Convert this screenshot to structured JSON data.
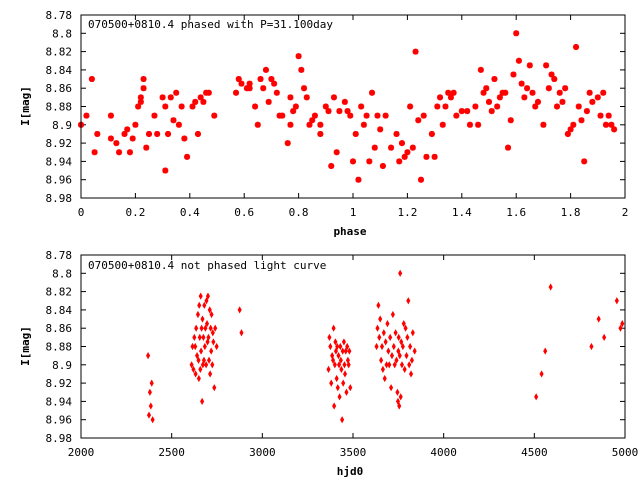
{
  "chart_data": [
    {
      "type": "scatter",
      "title": "070500+0810.4 phased with P=31.100day",
      "xlabel": "phase",
      "ylabel": "I[mag]",
      "xlim": [
        0,
        2
      ],
      "ylim": [
        8.78,
        8.98
      ],
      "y_inverted": true,
      "grid": false,
      "marker": "star",
      "color": "#ff0000",
      "x_ticks": [
        0,
        0.2,
        0.4,
        0.6,
        0.8,
        1,
        1.2,
        1.4,
        1.6,
        1.8,
        2
      ],
      "y_ticks": [
        8.78,
        8.8,
        8.82,
        8.84,
        8.86,
        8.88,
        8.9,
        8.92,
        8.94,
        8.96,
        8.98
      ],
      "x_tick_labels": [
        "0",
        "0.2",
        "0.4",
        "0.6",
        "0.8",
        "1",
        "1.2",
        "1.4",
        "1.6",
        "1.8",
        "2"
      ],
      "y_tick_labels": [
        "8.78",
        "8.8",
        "8.82",
        "8.84",
        "8.86",
        "8.88",
        "8.9",
        "8.92",
        "8.94",
        "8.96",
        "8.98"
      ],
      "points": [
        [
          0.0,
          8.9
        ],
        [
          0.02,
          8.89
        ],
        [
          0.04,
          8.85
        ],
        [
          0.05,
          8.93
        ],
        [
          0.06,
          8.91
        ],
        [
          0.11,
          8.915
        ],
        [
          0.11,
          8.89
        ],
        [
          0.13,
          8.92
        ],
        [
          0.14,
          8.93
        ],
        [
          0.16,
          8.91
        ],
        [
          0.17,
          8.905
        ],
        [
          0.18,
          8.93
        ],
        [
          0.19,
          8.915
        ],
        [
          0.2,
          8.9
        ],
        [
          0.21,
          8.88
        ],
        [
          0.22,
          8.875
        ],
        [
          0.22,
          8.87
        ],
        [
          0.23,
          8.85
        ],
        [
          0.23,
          8.86
        ],
        [
          0.24,
          8.925
        ],
        [
          0.25,
          8.91
        ],
        [
          0.27,
          8.89
        ],
        [
          0.28,
          8.91
        ],
        [
          0.3,
          8.87
        ],
        [
          0.31,
          8.95
        ],
        [
          0.31,
          8.88
        ],
        [
          0.32,
          8.91
        ],
        [
          0.33,
          8.87
        ],
        [
          0.34,
          8.895
        ],
        [
          0.35,
          8.865
        ],
        [
          0.36,
          8.9
        ],
        [
          0.37,
          8.88
        ],
        [
          0.38,
          8.915
        ],
        [
          0.39,
          8.935
        ],
        [
          0.41,
          8.88
        ],
        [
          0.42,
          8.875
        ],
        [
          0.43,
          8.91
        ],
        [
          0.44,
          8.87
        ],
        [
          0.45,
          8.875
        ],
        [
          0.46,
          8.865
        ],
        [
          0.47,
          8.865
        ],
        [
          0.49,
          8.89
        ],
        [
          0.57,
          8.865
        ],
        [
          0.58,
          8.85
        ],
        [
          0.59,
          8.855
        ],
        [
          0.61,
          8.86
        ],
        [
          0.62,
          8.855
        ],
        [
          0.62,
          8.86
        ],
        [
          0.64,
          8.88
        ],
        [
          0.65,
          8.9
        ],
        [
          0.66,
          8.85
        ],
        [
          0.67,
          8.86
        ],
        [
          0.68,
          8.84
        ],
        [
          0.69,
          8.875
        ],
        [
          0.7,
          8.85
        ],
        [
          0.71,
          8.855
        ],
        [
          0.72,
          8.865
        ],
        [
          0.73,
          8.89
        ],
        [
          0.74,
          8.89
        ],
        [
          0.76,
          8.92
        ],
        [
          0.77,
          8.87
        ],
        [
          0.77,
          8.9
        ],
        [
          0.78,
          8.885
        ],
        [
          0.79,
          8.88
        ],
        [
          0.8,
          8.825
        ],
        [
          0.81,
          8.84
        ],
        [
          0.82,
          8.86
        ],
        [
          0.83,
          8.87
        ],
        [
          0.84,
          8.9
        ],
        [
          0.85,
          8.895
        ],
        [
          0.86,
          8.89
        ],
        [
          0.88,
          8.91
        ],
        [
          0.88,
          8.9
        ],
        [
          0.9,
          8.88
        ],
        [
          0.91,
          8.885
        ],
        [
          0.92,
          8.945
        ],
        [
          0.93,
          8.87
        ],
        [
          0.94,
          8.93
        ],
        [
          0.95,
          8.885
        ],
        [
          0.97,
          8.875
        ],
        [
          0.98,
          8.885
        ],
        [
          0.99,
          8.89
        ],
        [
          1.0,
          8.94
        ],
        [
          1.01,
          8.91
        ],
        [
          1.02,
          8.96
        ],
        [
          1.03,
          8.88
        ],
        [
          1.04,
          8.9
        ],
        [
          1.05,
          8.89
        ],
        [
          1.06,
          8.94
        ],
        [
          1.07,
          8.865
        ],
        [
          1.08,
          8.925
        ],
        [
          1.09,
          8.89
        ],
        [
          1.1,
          8.905
        ],
        [
          1.11,
          8.945
        ],
        [
          1.12,
          8.89
        ],
        [
          1.14,
          8.925
        ],
        [
          1.16,
          8.91
        ],
        [
          1.17,
          8.94
        ],
        [
          1.18,
          8.92
        ],
        [
          1.19,
          8.935
        ],
        [
          1.2,
          8.93
        ],
        [
          1.21,
          8.88
        ],
        [
          1.22,
          8.925
        ],
        [
          1.23,
          8.82
        ],
        [
          1.24,
          8.895
        ],
        [
          1.25,
          8.96
        ],
        [
          1.26,
          8.89
        ],
        [
          1.27,
          8.935
        ],
        [
          1.29,
          8.91
        ],
        [
          1.3,
          8.935
        ],
        [
          1.31,
          8.88
        ],
        [
          1.32,
          8.87
        ],
        [
          1.33,
          8.9
        ],
        [
          1.34,
          8.88
        ],
        [
          1.35,
          8.865
        ],
        [
          1.36,
          8.87
        ],
        [
          1.37,
          8.865
        ],
        [
          1.38,
          8.89
        ],
        [
          1.4,
          8.885
        ],
        [
          1.42,
          8.885
        ],
        [
          1.43,
          8.9
        ],
        [
          1.45,
          8.88
        ],
        [
          1.46,
          8.9
        ],
        [
          1.47,
          8.84
        ],
        [
          1.48,
          8.865
        ],
        [
          1.49,
          8.86
        ],
        [
          1.5,
          8.875
        ],
        [
          1.51,
          8.885
        ],
        [
          1.52,
          8.85
        ],
        [
          1.53,
          8.88
        ],
        [
          1.54,
          8.87
        ],
        [
          1.55,
          8.865
        ],
        [
          1.56,
          8.865
        ],
        [
          1.57,
          8.925
        ],
        [
          1.58,
          8.895
        ],
        [
          1.59,
          8.845
        ],
        [
          1.6,
          8.8
        ],
        [
          1.61,
          8.83
        ],
        [
          1.62,
          8.855
        ],
        [
          1.63,
          8.87
        ],
        [
          1.64,
          8.86
        ],
        [
          1.65,
          8.835
        ],
        [
          1.66,
          8.865
        ],
        [
          1.67,
          8.88
        ],
        [
          1.68,
          8.875
        ],
        [
          1.7,
          8.9
        ],
        [
          1.71,
          8.835
        ],
        [
          1.72,
          8.86
        ],
        [
          1.73,
          8.845
        ],
        [
          1.74,
          8.85
        ],
        [
          1.75,
          8.88
        ],
        [
          1.76,
          8.865
        ],
        [
          1.77,
          8.875
        ],
        [
          1.78,
          8.86
        ],
        [
          1.79,
          8.91
        ],
        [
          1.8,
          8.905
        ],
        [
          1.81,
          8.9
        ],
        [
          1.82,
          8.815
        ],
        [
          1.83,
          8.88
        ],
        [
          1.84,
          8.895
        ],
        [
          1.85,
          8.94
        ],
        [
          1.86,
          8.885
        ],
        [
          1.87,
          8.865
        ],
        [
          1.88,
          8.875
        ],
        [
          1.9,
          8.87
        ],
        [
          1.91,
          8.89
        ],
        [
          1.92,
          8.865
        ],
        [
          1.93,
          8.9
        ],
        [
          1.94,
          8.89
        ],
        [
          1.95,
          8.9
        ],
        [
          1.96,
          8.905
        ]
      ]
    },
    {
      "type": "scatter",
      "title": "070500+0810.4 not phased light curve",
      "xlabel": "hjd0",
      "ylabel": "I[mag]",
      "xlim": [
        2000,
        5000
      ],
      "ylim": [
        8.78,
        8.98
      ],
      "y_inverted": true,
      "grid": false,
      "marker": "diamond",
      "color": "#ff0000",
      "x_ticks": [
        2000,
        2500,
        3000,
        3500,
        4000,
        4500,
        5000
      ],
      "y_ticks": [
        8.78,
        8.8,
        8.82,
        8.84,
        8.86,
        8.88,
        8.9,
        8.92,
        8.94,
        8.96,
        8.98
      ],
      "x_tick_labels": [
        "2000",
        "2500",
        "3000",
        "3500",
        "4000",
        "4500",
        "5000"
      ],
      "y_tick_labels": [
        "8.78",
        "8.8",
        "8.82",
        "8.84",
        "8.86",
        "8.88",
        "8.9",
        "8.92",
        "8.94",
        "8.96",
        "8.98"
      ],
      "points": [
        [
          2370,
          8.89
        ],
        [
          2375,
          8.955
        ],
        [
          2380,
          8.93
        ],
        [
          2385,
          8.945
        ],
        [
          2390,
          8.92
        ],
        [
          2395,
          8.96
        ],
        [
          2610,
          8.9
        ],
        [
          2615,
          8.88
        ],
        [
          2620,
          8.905
        ],
        [
          2625,
          8.87
        ],
        [
          2630,
          8.88
        ],
        [
          2632,
          8.91
        ],
        [
          2635,
          8.86
        ],
        [
          2640,
          8.89
        ],
        [
          2645,
          8.845
        ],
        [
          2648,
          8.895
        ],
        [
          2650,
          8.915
        ],
        [
          2652,
          8.835
        ],
        [
          2655,
          8.87
        ],
        [
          2658,
          8.905
        ],
        [
          2660,
          8.825
        ],
        [
          2662,
          8.885
        ],
        [
          2665,
          8.86
        ],
        [
          2668,
          8.94
        ],
        [
          2670,
          8.85
        ],
        [
          2672,
          8.9
        ],
        [
          2675,
          8.87
        ],
        [
          2678,
          8.895
        ],
        [
          2680,
          8.835
        ],
        [
          2683,
          8.88
        ],
        [
          2686,
          8.86
        ],
        [
          2690,
          8.9
        ],
        [
          2692,
          8.83
        ],
        [
          2695,
          8.855
        ],
        [
          2698,
          8.875
        ],
        [
          2700,
          8.825
        ],
        [
          2703,
          8.87
        ],
        [
          2706,
          8.895
        ],
        [
          2710,
          8.84
        ],
        [
          2712,
          8.91
        ],
        [
          2715,
          8.86
        ],
        [
          2718,
          8.885
        ],
        [
          2720,
          8.845
        ],
        [
          2724,
          8.9
        ],
        [
          2727,
          8.865
        ],
        [
          2730,
          8.875
        ],
        [
          2735,
          8.925
        ],
        [
          2740,
          8.86
        ],
        [
          2748,
          8.88
        ],
        [
          2875,
          8.84
        ],
        [
          2885,
          8.865
        ],
        [
          3365,
          8.905
        ],
        [
          3370,
          8.87
        ],
        [
          3375,
          8.88
        ],
        [
          3380,
          8.92
        ],
        [
          3385,
          8.89
        ],
        [
          3390,
          8.895
        ],
        [
          3393,
          8.86
        ],
        [
          3396,
          8.945
        ],
        [
          3400,
          8.9
        ],
        [
          3403,
          8.875
        ],
        [
          3406,
          8.885
        ],
        [
          3410,
          8.915
        ],
        [
          3413,
          8.88
        ],
        [
          3416,
          8.925
        ],
        [
          3420,
          8.89
        ],
        [
          3423,
          8.9
        ],
        [
          3426,
          8.935
        ],
        [
          3430,
          8.88
        ],
        [
          3433,
          8.895
        ],
        [
          3436,
          8.905
        ],
        [
          3440,
          8.96
        ],
        [
          3443,
          8.885
        ],
        [
          3446,
          8.92
        ],
        [
          3450,
          8.875
        ],
        [
          3453,
          8.9
        ],
        [
          3456,
          8.91
        ],
        [
          3460,
          8.885
        ],
        [
          3464,
          8.93
        ],
        [
          3468,
          8.88
        ],
        [
          3472,
          8.895
        ],
        [
          3476,
          8.9
        ],
        [
          3480,
          8.885
        ],
        [
          3485,
          8.925
        ],
        [
          3630,
          8.88
        ],
        [
          3635,
          8.86
        ],
        [
          3640,
          8.835
        ],
        [
          3645,
          8.87
        ],
        [
          3650,
          8.85
        ],
        [
          3655,
          8.895
        ],
        [
          3660,
          8.88
        ],
        [
          3665,
          8.905
        ],
        [
          3670,
          8.865
        ],
        [
          3675,
          8.915
        ],
        [
          3680,
          8.875
        ],
        [
          3685,
          8.9
        ],
        [
          3690,
          8.855
        ],
        [
          3695,
          8.885
        ],
        [
          3700,
          8.9
        ],
        [
          3705,
          8.87
        ],
        [
          3710,
          8.925
        ],
        [
          3715,
          8.89
        ],
        [
          3720,
          8.845
        ],
        [
          3725,
          8.88
        ],
        [
          3730,
          8.9
        ],
        [
          3735,
          8.865
        ],
        [
          3740,
          8.895
        ],
        [
          3745,
          8.93
        ],
        [
          3748,
          8.94
        ],
        [
          3750,
          8.885
        ],
        [
          3752,
          8.87
        ],
        [
          3755,
          8.945
        ],
        [
          3758,
          8.89
        ],
        [
          3760,
          8.8
        ],
        [
          3763,
          8.935
        ],
        [
          3766,
          8.875
        ],
        [
          3770,
          8.9
        ],
        [
          3775,
          8.88
        ],
        [
          3780,
          8.855
        ],
        [
          3785,
          8.905
        ],
        [
          3790,
          8.86
        ],
        [
          3795,
          8.89
        ],
        [
          3800,
          8.87
        ],
        [
          3805,
          8.83
        ],
        [
          3810,
          8.9
        ],
        [
          3815,
          8.88
        ],
        [
          3820,
          8.91
        ],
        [
          3825,
          8.895
        ],
        [
          3830,
          8.865
        ],
        [
          3840,
          8.885
        ],
        [
          4510,
          8.935
        ],
        [
          4540,
          8.91
        ],
        [
          4560,
          8.885
        ],
        [
          4590,
          8.815
        ],
        [
          4815,
          8.88
        ],
        [
          4855,
          8.85
        ],
        [
          4885,
          8.87
        ],
        [
          4955,
          8.83
        ],
        [
          4975,
          8.86
        ],
        [
          4985,
          8.855
        ]
      ]
    }
  ]
}
